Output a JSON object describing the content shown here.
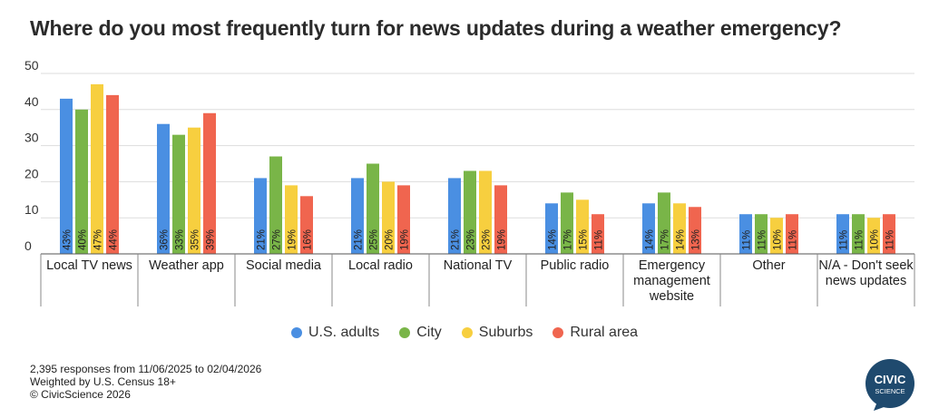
{
  "title": "Where do you most frequently turn for news updates during a weather emergency?",
  "footer": {
    "line1": "2,395 responses from 11/06/2025 to 02/04/2026",
    "line2": "Weighted by U.S. Census 18+",
    "line3": "© CivicScience 2026"
  },
  "logo": {
    "line1": "CIVIC",
    "line2": "SCIENCE",
    "color": "#1f4a6e"
  },
  "chart_data": {
    "type": "bar",
    "title": "Where do you most frequently turn for news updates during a weather emergency?",
    "categories": [
      [
        "Local TV news"
      ],
      [
        "Weather app"
      ],
      [
        "Social media"
      ],
      [
        "Local radio"
      ],
      [
        "National TV"
      ],
      [
        "Public radio"
      ],
      [
        "Emergency",
        "management",
        "website"
      ],
      [
        "Other"
      ],
      [
        "N/A - Don't seek",
        "news updates"
      ]
    ],
    "series": [
      {
        "name": "U.S. adults",
        "color": "#4a8fe2",
        "values": [
          43,
          36,
          21,
          21,
          21,
          14,
          14,
          11,
          11
        ]
      },
      {
        "name": "City",
        "color": "#79b548",
        "values": [
          40,
          33,
          27,
          25,
          23,
          17,
          17,
          11,
          11
        ]
      },
      {
        "name": "Suburbs",
        "color": "#f7cf3f",
        "values": [
          47,
          35,
          19,
          20,
          23,
          15,
          14,
          10,
          10
        ]
      },
      {
        "name": "Rural area",
        "color": "#f0654f",
        "values": [
          44,
          39,
          16,
          19,
          19,
          11,
          13,
          11,
          11
        ]
      }
    ],
    "ylim": [
      0,
      50
    ],
    "yticks": [
      0,
      10,
      20,
      30,
      40,
      50
    ],
    "label_suffix": "%",
    "grid": true,
    "legend_position": "bottom"
  }
}
